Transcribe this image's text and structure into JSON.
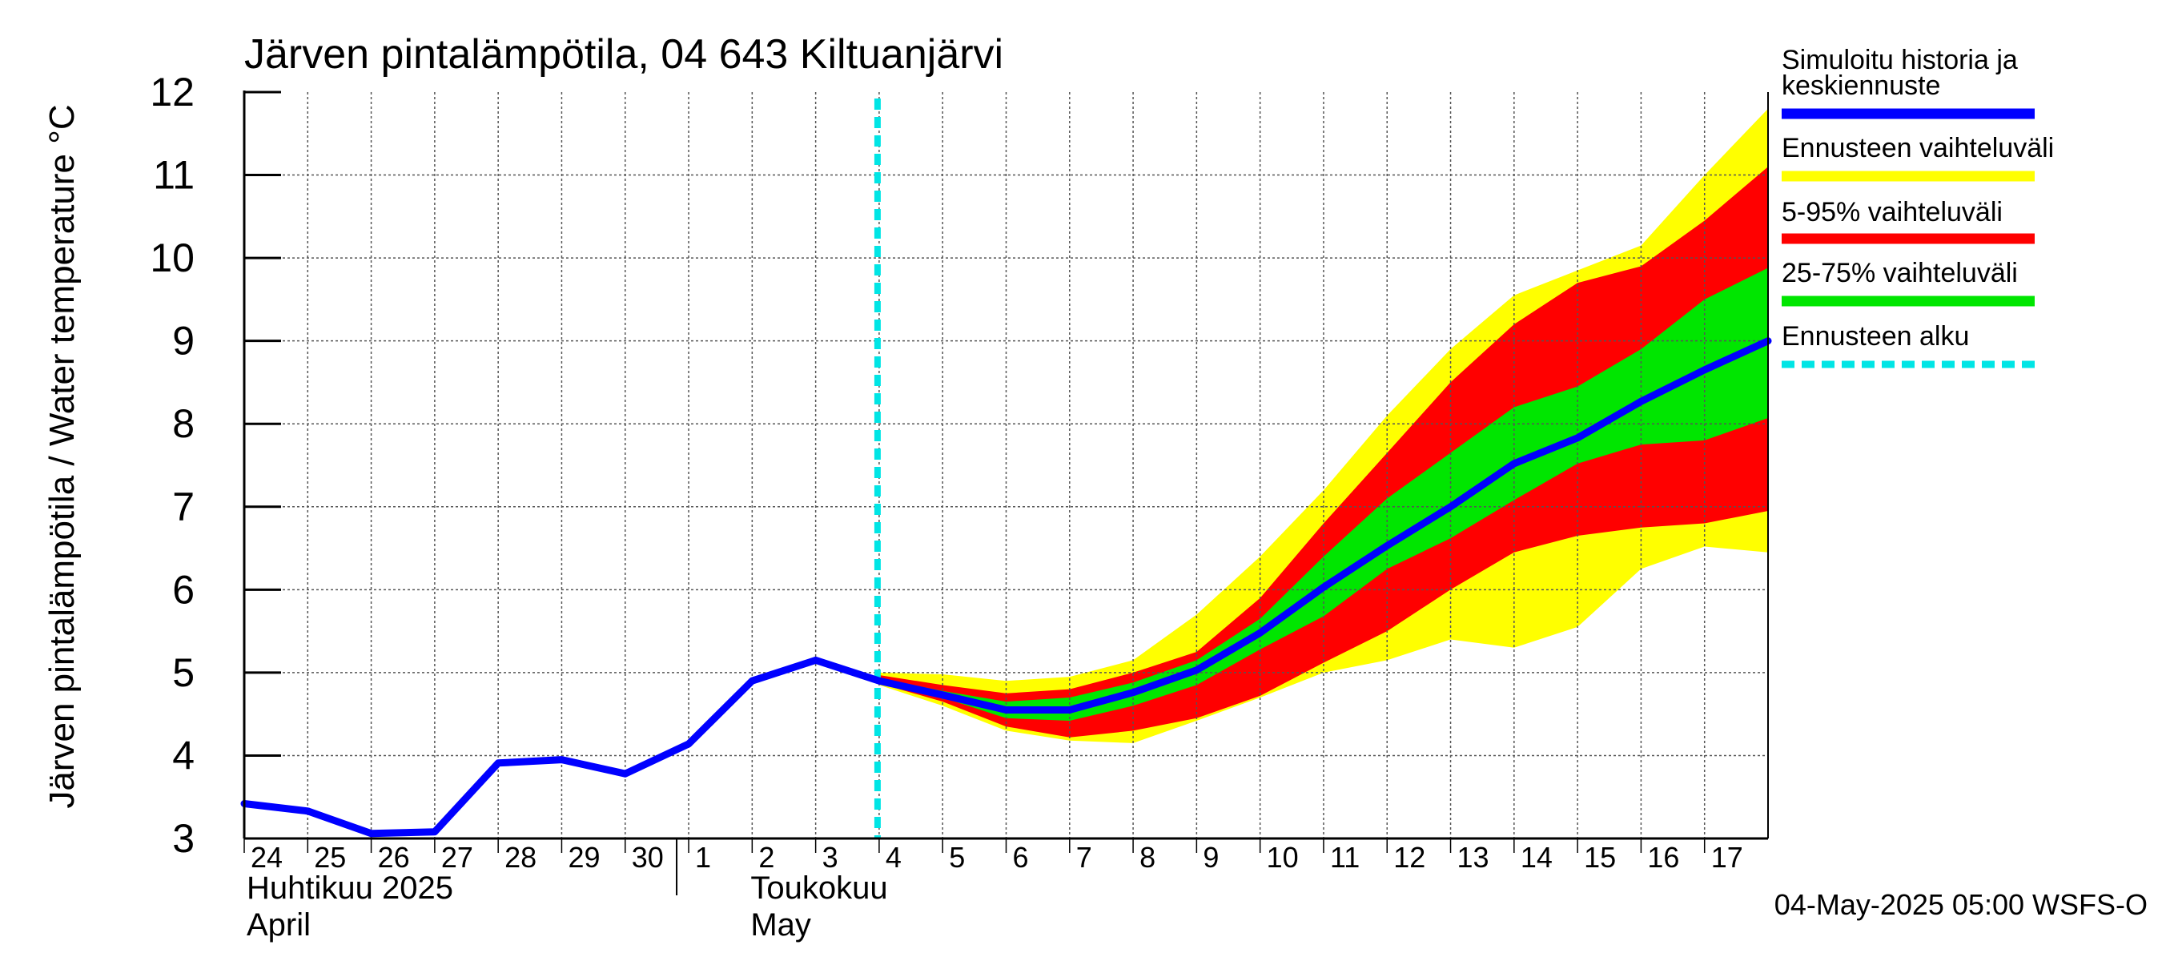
{
  "chart_data": {
    "type": "area",
    "title": "Järven pintalämpötila, 04 643 Kiltuanjärvi",
    "ylabel": "Järven pintalämpötila / Water temperature °C",
    "ylim": [
      3,
      12
    ],
    "yticks": [
      "3",
      "4",
      "5",
      "6",
      "7",
      "8",
      "9",
      "10",
      "11",
      "12"
    ],
    "grid": true,
    "legend_position": "right",
    "x_ticks": [
      "24",
      "25",
      "26",
      "27",
      "28",
      "29",
      "30",
      "1",
      "2",
      "3",
      "4",
      "5",
      "6",
      "7",
      "8",
      "9",
      "10",
      "11",
      "12",
      "13",
      "14",
      "15",
      "16",
      "17"
    ],
    "month_labels": [
      {
        "fi": "Huhtikuu  2025",
        "en": "April"
      },
      {
        "fi": "Toukokuu",
        "en": "May"
      }
    ],
    "forecast_start": "4",
    "timestamp": "04-May-2025 05:00 WSFS-O",
    "x": [
      "2025-04-24",
      "2025-04-25",
      "2025-04-26",
      "2025-04-27",
      "2025-04-28",
      "2025-04-29",
      "2025-04-30",
      "2025-05-01",
      "2025-05-02",
      "2025-05-03",
      "2025-05-04",
      "2025-05-05",
      "2025-05-06",
      "2025-05-07",
      "2025-05-08",
      "2025-05-09",
      "2025-05-10",
      "2025-05-11",
      "2025-05-12",
      "2025-05-13",
      "2025-05-14",
      "2025-05-15",
      "2025-05-16",
      "2025-05-17",
      "2025-05-18"
    ],
    "series": [
      {
        "name": "Simuloitu historia ja keskiennuste",
        "color": "#0000ff",
        "values": [
          3.42,
          3.33,
          3.06,
          3.08,
          3.91,
          3.95,
          3.78,
          4.14,
          4.9,
          5.15,
          4.9,
          4.73,
          4.55,
          4.55,
          4.76,
          5.03,
          5.48,
          6.03,
          6.53,
          7.0,
          7.52,
          7.83,
          8.27,
          8.65,
          9.0
        ]
      }
    ],
    "bands": [
      {
        "name": "Ennusteen vaihteluväli",
        "color": "#ffff00",
        "upper": [
          null,
          null,
          null,
          null,
          null,
          null,
          null,
          null,
          null,
          null,
          5.0,
          4.98,
          4.9,
          4.95,
          5.15,
          5.7,
          6.4,
          7.2,
          8.1,
          8.9,
          9.55,
          9.85,
          10.15,
          11.0,
          11.8
        ],
        "lower": [
          null,
          null,
          null,
          null,
          null,
          null,
          null,
          null,
          null,
          null,
          4.85,
          4.6,
          4.3,
          4.18,
          4.15,
          4.42,
          4.7,
          5.0,
          5.15,
          5.4,
          5.3,
          5.55,
          6.25,
          6.52,
          6.45
        ]
      },
      {
        "name": "5-95% vaihteluväli",
        "color": "#ff0000",
        "upper": [
          null,
          null,
          null,
          null,
          null,
          null,
          null,
          null,
          null,
          null,
          4.97,
          4.85,
          4.75,
          4.8,
          5.0,
          5.25,
          5.9,
          6.8,
          7.65,
          8.5,
          9.2,
          9.7,
          9.9,
          10.45,
          11.1
        ],
        "lower": [
          null,
          null,
          null,
          null,
          null,
          null,
          null,
          null,
          null,
          null,
          4.87,
          4.65,
          4.35,
          4.22,
          4.3,
          4.45,
          4.72,
          5.12,
          5.5,
          6.0,
          6.45,
          6.65,
          6.75,
          6.8,
          6.95
        ]
      },
      {
        "name": "25-75% vaihteluväli",
        "color": "#00e600",
        "upper": [
          null,
          null,
          null,
          null,
          null,
          null,
          null,
          null,
          null,
          null,
          4.93,
          4.78,
          4.65,
          4.7,
          4.88,
          5.15,
          5.65,
          6.4,
          7.1,
          7.65,
          8.2,
          8.45,
          8.9,
          9.5,
          9.88
        ],
        "lower": [
          null,
          null,
          null,
          null,
          null,
          null,
          null,
          null,
          null,
          null,
          4.89,
          4.7,
          4.45,
          4.42,
          4.6,
          4.85,
          5.28,
          5.68,
          6.25,
          6.62,
          7.08,
          7.52,
          7.75,
          7.8,
          8.07
        ]
      }
    ],
    "legend": [
      {
        "label": "Simuloitu historia ja keskiennuste",
        "color": "#0000ff",
        "style": "solid"
      },
      {
        "label": "Ennusteen vaihteluväli",
        "color": "#ffff00",
        "style": "solid"
      },
      {
        "label": "5-95% vaihteluväli",
        "color": "#ff0000",
        "style": "solid"
      },
      {
        "label": "25-75% vaihteluväli",
        "color": "#00e600",
        "style": "solid"
      },
      {
        "label": "Ennusteen alku",
        "color": "#00e5e5",
        "style": "dashed"
      }
    ]
  }
}
